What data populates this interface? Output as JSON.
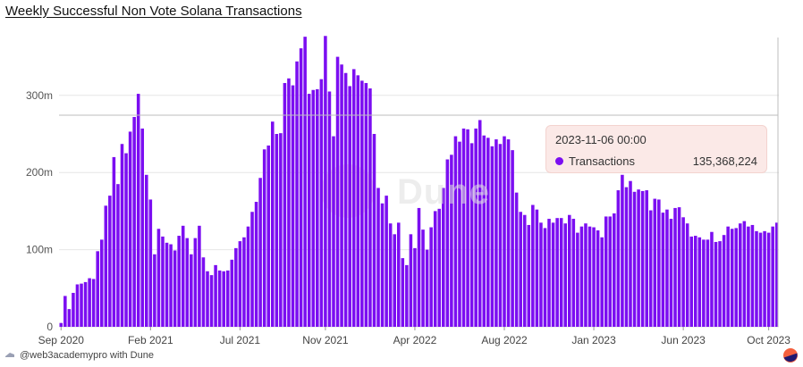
{
  "title": "Weekly Successful Non Vote Solana Transactions",
  "footer": {
    "text": "@web3academypro with Dune"
  },
  "watermark": "Dune",
  "tooltip": {
    "date": "2023-11-06 00:00",
    "series": "Transactions",
    "value": "135,368,224"
  },
  "colors": {
    "bar": "#7b0ef1",
    "tooltip_bg": "#fbe9e7",
    "grid": "#e6e6e6"
  },
  "chart_data": {
    "type": "bar",
    "title": "Weekly Successful Non Vote Solana Transactions",
    "xlabel": "",
    "ylabel": "",
    "ylim": [
      0,
      375000000
    ],
    "y_ticks": [
      0,
      100000000,
      200000000,
      300000000
    ],
    "y_tick_labels": [
      "0",
      "100m",
      "200m",
      "300m"
    ],
    "x_ticks": [
      {
        "label": "Sep 2020",
        "index": 0
      },
      {
        "label": "Feb 2021",
        "index": 22
      },
      {
        "label": "Jul 2021",
        "index": 44
      },
      {
        "label": "Nov 2021",
        "index": 65
      },
      {
        "label": "Apr 2022",
        "index": 87
      },
      {
        "label": "Aug 2022",
        "index": 109
      },
      {
        "label": "Jan 2023",
        "index": 131
      },
      {
        "label": "Jun 2023",
        "index": 153
      },
      {
        "label": "Oct 2023",
        "index": 174
      }
    ],
    "grid": true,
    "legend": "none",
    "series": [
      {
        "name": "Transactions",
        "values": [
          5,
          40,
          23,
          44,
          55,
          56,
          58,
          63,
          62,
          98,
          113,
          157,
          170,
          220,
          185,
          237,
          225,
          253,
          272,
          302,
          257,
          197,
          165,
          94,
          127,
          117,
          109,
          107,
          99,
          118,
          131,
          115,
          94,
          115,
          131,
          90,
          72,
          67,
          80,
          73,
          72,
          73,
          87,
          102,
          111,
          116,
          130,
          149,
          162,
          193,
          230,
          235,
          266,
          250,
          251,
          316,
          322,
          313,
          344,
          361,
          376,
          302,
          307,
          308,
          321,
          377,
          305,
          247,
          350,
          340,
          329,
          312,
          334,
          326,
          319,
          316,
          309,
          250,
          180,
          160,
          170,
          134,
          120,
          135,
          89,
          80,
          120,
          102,
          154,
          126,
          100,
          129,
          150,
          153,
          180,
          217,
          223,
          247,
          240,
          257,
          256,
          238,
          257,
          268,
          248,
          245,
          234,
          243,
          237,
          247,
          243,
          229,
          174,
          149,
          145,
          132,
          158,
          152,
          135,
          128,
          140,
          135,
          141,
          141,
          134,
          145,
          140,
          122,
          130,
          134,
          130,
          129,
          125,
          116,
          143,
          143,
          147,
          177,
          197,
          181,
          189,
          175,
          178,
          176,
          177,
          151,
          166,
          165,
          148,
          152,
          140,
          154,
          155,
          142,
          134,
          117,
          118,
          116,
          113,
          113,
          123,
          110,
          111,
          119,
          130,
          127,
          128,
          134,
          137,
          130,
          132,
          124,
          122,
          124,
          122,
          130,
          135
        ]
      }
    ]
  }
}
